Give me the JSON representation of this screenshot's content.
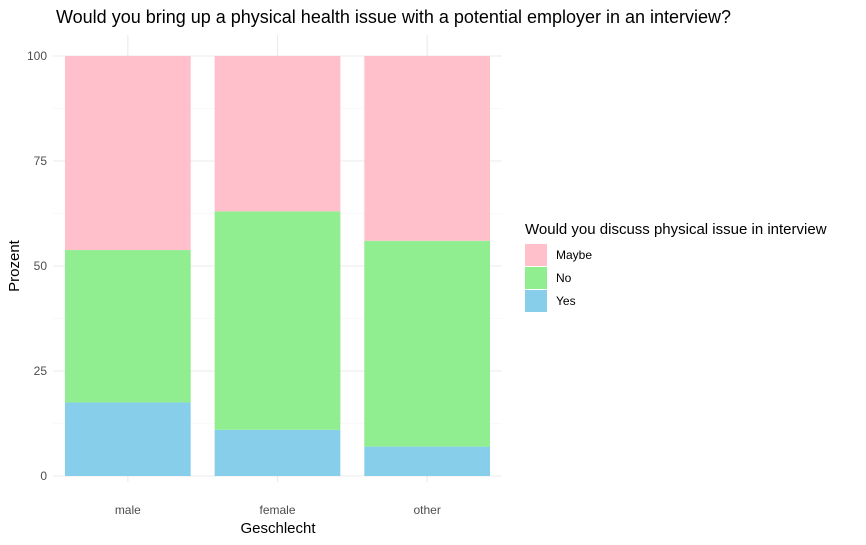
{
  "chart_data": {
    "type": "bar",
    "stacked": true,
    "title": "Would you bring up a physical health issue with a potential employer in an interview?",
    "xlabel": "Geschlecht",
    "ylabel": "Prozent",
    "categories": [
      "male",
      "female",
      "other"
    ],
    "ylim": [
      0,
      100
    ],
    "yticks": [
      "0",
      "25",
      "50",
      "75",
      "100"
    ],
    "grid": true,
    "legend": {
      "title": "Would you discuss physical issue in interview",
      "position": "right"
    },
    "series": [
      {
        "name": "Yes",
        "color": "#87CEEB",
        "values": [
          17.5,
          11,
          7
        ]
      },
      {
        "name": "No",
        "color": "#90EE90",
        "values": [
          36.3,
          52,
          49
        ]
      },
      {
        "name": "Maybe",
        "color": "#FFC0CB",
        "values": [
          46.2,
          37,
          44
        ]
      }
    ],
    "legend_order": [
      "Maybe",
      "No",
      "Yes"
    ]
  }
}
